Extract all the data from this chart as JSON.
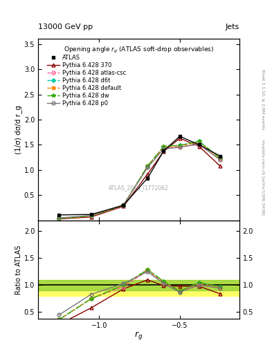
{
  "title_top": "13000 GeV pp",
  "title_right": "Jets",
  "plot_title": "Opening angle r$_g$ (ATLAS soft-drop observables)",
  "xlabel": "r$_g$",
  "ylabel_main": "(1/σ) dσ/d r_g",
  "ylabel_ratio": "Ratio to ATLAS",
  "watermark": "ATLAS_2019_I1772062",
  "right_label_top": "Rivet 3.1.10, ≥ 2.6M events",
  "right_label_bottom": "mcplots.cern.ch [arXiv:1306.3436]",
  "x_values": [
    -1.25,
    -1.05,
    -0.85,
    -0.7,
    -0.6,
    -0.5,
    -0.38,
    -0.25
  ],
  "xlim": [
    -1.38,
    -0.13
  ],
  "xticks": [
    -1.0,
    -0.5
  ],
  "ylim_main": [
    0,
    3.6
  ],
  "yticks_main": [
    0.5,
    1.0,
    1.5,
    2.0,
    2.5,
    3.0,
    3.5
  ],
  "ylim_ratio": [
    0.38,
    2.2
  ],
  "yticks_ratio": [
    0.5,
    1.0,
    1.5,
    2.0
  ],
  "atlas_y": [
    0.11,
    0.12,
    0.3,
    0.84,
    1.38,
    1.67,
    1.5,
    1.28
  ],
  "py_370_y": [
    0.03,
    0.07,
    0.28,
    0.92,
    1.37,
    1.63,
    1.47,
    1.08
  ],
  "py_atlascsc_y": [
    0.04,
    0.09,
    0.29,
    1.07,
    1.43,
    1.47,
    1.5,
    1.22
  ],
  "py_d6t_y": [
    0.04,
    0.09,
    0.3,
    1.08,
    1.47,
    1.49,
    1.57,
    1.24
  ],
  "py_default_y": [
    0.04,
    0.09,
    0.3,
    1.08,
    1.46,
    1.48,
    1.55,
    1.23
  ],
  "py_dw_y": [
    0.04,
    0.09,
    0.3,
    1.08,
    1.47,
    1.49,
    1.57,
    1.24
  ],
  "py_p0_y": [
    0.05,
    0.1,
    0.31,
    1.05,
    1.42,
    1.45,
    1.52,
    1.2
  ],
  "ratio_370": [
    0.27,
    0.58,
    0.93,
    1.1,
    0.99,
    0.98,
    0.98,
    0.84
  ],
  "ratio_atlascsc": [
    0.36,
    0.75,
    0.97,
    1.27,
    1.04,
    0.88,
    1.0,
    0.95
  ],
  "ratio_d6t": [
    0.36,
    0.75,
    1.0,
    1.29,
    1.07,
    0.89,
    1.05,
    0.97
  ],
  "ratio_default": [
    0.36,
    0.75,
    1.0,
    1.29,
    1.06,
    0.89,
    1.03,
    0.96
  ],
  "ratio_dw": [
    0.36,
    0.75,
    1.0,
    1.29,
    1.07,
    0.89,
    1.05,
    0.97
  ],
  "ratio_p0": [
    0.45,
    0.83,
    1.03,
    1.25,
    1.03,
    0.87,
    1.01,
    0.94
  ],
  "band_green_lo": 0.9,
  "band_green_hi": 1.1,
  "band_yellow_lo": 0.8,
  "band_yellow_hi": 1.1,
  "color_atlas": "#000000",
  "color_370": "#8b0000",
  "color_atlascsc": "#ff6699",
  "color_d6t": "#00ccaa",
  "color_default": "#ff8800",
  "color_dw": "#33aa00",
  "color_p0": "#777777",
  "legend_labels": [
    "ATLAS",
    "Pythia 6.428 370",
    "Pythia 6.428 atlas-csc",
    "Pythia 6.428 d6t",
    "Pythia 6.428 default",
    "Pythia 6.428 dw",
    "Pythia 6.428 p0"
  ]
}
